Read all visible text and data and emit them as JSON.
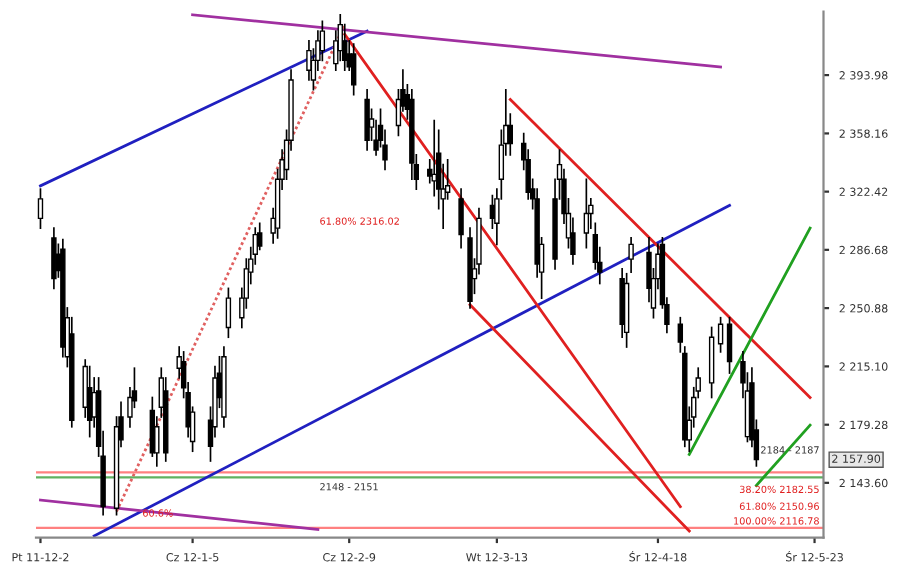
{
  "chart_data": {
    "type": "candlestick",
    "x": [
      "2011-12-02",
      "2011-12-05",
      "2011-12-06",
      "2011-12-07",
      "2011-12-08",
      "2011-12-09",
      "2011-12-12",
      "2011-12-13",
      "2011-12-14",
      "2011-12-15",
      "2011-12-16",
      "2011-12-19",
      "2011-12-20",
      "2011-12-22",
      "2011-12-23",
      "2011-12-27",
      "2011-12-28",
      "2011-12-29",
      "2011-12-30",
      "2012-01-02",
      "2012-01-03",
      "2012-01-04",
      "2012-01-05",
      "2012-01-09",
      "2012-01-10",
      "2012-01-11",
      "2012-01-12",
      "2012-01-13",
      "2012-01-16",
      "2012-01-17",
      "2012-01-18",
      "2012-01-19",
      "2012-01-20",
      "2012-01-23",
      "2012-01-24",
      "2012-01-25",
      "2012-01-26",
      "2012-01-27",
      "2012-01-31",
      "2012-02-01",
      "2012-02-02",
      "2012-02-03",
      "2012-02-06",
      "2012-02-07",
      "2012-02-08",
      "2012-02-09",
      "2012-02-10",
      "2012-02-13",
      "2012-02-14",
      "2012-02-15",
      "2012-02-16",
      "2012-02-17",
      "2012-02-20",
      "2012-02-21",
      "2012-02-22",
      "2012-02-23",
      "2012-02-24",
      "2012-02-27",
      "2012-02-28",
      "2012-02-29",
      "2012-03-01",
      "2012-03-02",
      "2012-03-05",
      "2012-03-07",
      "2012-03-08",
      "2012-03-09",
      "2012-03-12",
      "2012-03-13",
      "2012-03-14",
      "2012-03-15",
      "2012-03-16",
      "2012-03-19",
      "2012-03-20",
      "2012-03-21",
      "2012-03-22",
      "2012-03-23",
      "2012-03-26",
      "2012-03-27",
      "2012-03-28",
      "2012-03-29",
      "2012-03-30",
      "2012-04-02",
      "2012-04-03",
      "2012-04-04",
      "2012-04-05",
      "2012-04-10",
      "2012-04-11",
      "2012-04-12",
      "2012-04-16",
      "2012-04-17",
      "2012-04-18",
      "2012-04-19",
      "2012-04-20",
      "2012-04-23",
      "2012-04-24",
      "2012-04-25",
      "2012-04-26",
      "2012-04-27",
      "2012-04-30",
      "2012-05-02",
      "2012-05-04",
      "2012-05-07",
      "2012-05-08",
      "2012-05-09",
      "2012-05-10"
    ],
    "ohlc": [
      [
        2306,
        2324,
        2300,
        2318
      ],
      [
        2294,
        2300,
        2263,
        2269
      ],
      [
        2284,
        2290,
        2270,
        2274
      ],
      [
        2287,
        2293,
        2221,
        2227
      ],
      [
        2221,
        2251,
        2215,
        2245
      ],
      [
        2235,
        2245,
        2178,
        2182
      ],
      [
        2190,
        2219,
        2184,
        2215
      ],
      [
        2202,
        2215,
        2172,
        2182
      ],
      [
        2184,
        2208,
        2178,
        2199
      ],
      [
        2200,
        2208,
        2160,
        2166
      ],
      [
        2160,
        2175,
        2124,
        2129
      ],
      [
        2128,
        2184,
        2124,
        2178
      ],
      [
        2184,
        2193,
        2166,
        2170
      ],
      [
        2184,
        2202,
        2178,
        2196
      ],
      [
        2200,
        2214,
        2190,
        2194
      ],
      [
        2188,
        2196,
        2160,
        2162
      ],
      [
        2162,
        2184,
        2154,
        2178
      ],
      [
        2190,
        2214,
        2184,
        2208
      ],
      [
        2200,
        2208,
        2157,
        2162
      ],
      [
        2214,
        2227,
        2208,
        2221
      ],
      [
        2218,
        2224,
        2196,
        2202
      ],
      [
        2199,
        2205,
        2172,
        2178
      ],
      [
        2169,
        2190,
        2163,
        2187
      ],
      [
        2182,
        2190,
        2157,
        2166
      ],
      [
        2178,
        2215,
        2172,
        2208
      ],
      [
        2211,
        2221,
        2190,
        2196
      ],
      [
        2184,
        2227,
        2178,
        2221
      ],
      [
        2239,
        2263,
        2233,
        2257
      ],
      [
        2245,
        2263,
        2239,
        2257
      ],
      [
        2257,
        2281,
        2251,
        2275
      ],
      [
        2273,
        2288,
        2266,
        2281
      ],
      [
        2284,
        2300,
        2278,
        2296
      ],
      [
        2297,
        2303,
        2287,
        2289
      ],
      [
        2297,
        2312,
        2291,
        2306
      ],
      [
        2300,
        2336,
        2294,
        2330
      ],
      [
        2330,
        2348,
        2324,
        2342
      ],
      [
        2336,
        2360,
        2330,
        2354
      ],
      [
        2354,
        2397,
        2348,
        2391
      ],
      [
        2397,
        2415,
        2391,
        2409
      ],
      [
        2391,
        2410,
        2385,
        2403
      ],
      [
        2403,
        2421,
        2397,
        2415
      ],
      [
        2409,
        2427,
        2403,
        2421
      ],
      [
        2401,
        2421,
        2397,
        2415
      ],
      [
        2409,
        2431,
        2403,
        2425
      ],
      [
        2415,
        2425,
        2397,
        2403
      ],
      [
        2407,
        2415,
        2397,
        2399
      ],
      [
        2407,
        2413,
        2382,
        2388
      ],
      [
        2379,
        2385,
        2348,
        2354
      ],
      [
        2362,
        2373,
        2354,
        2367
      ],
      [
        2354,
        2366,
        2345,
        2348
      ],
      [
        2363,
        2373,
        2350,
        2354
      ],
      [
        2351,
        2360,
        2336,
        2342
      ],
      [
        2363,
        2385,
        2357,
        2379
      ],
      [
        2385,
        2397,
        2372,
        2375
      ],
      [
        2382,
        2388,
        2367,
        2373
      ],
      [
        2379,
        2385,
        2330,
        2340
      ],
      [
        2339,
        2345,
        2324,
        2330
      ],
      [
        2336,
        2342,
        2328,
        2332
      ],
      [
        2329,
        2366,
        2320,
        2333
      ],
      [
        2346,
        2360,
        2312,
        2324
      ],
      [
        2318,
        2339,
        2300,
        2324
      ],
      [
        2322,
        2342,
        2318,
        2326
      ],
      [
        2318,
        2324,
        2288,
        2296
      ],
      [
        2294,
        2300,
        2251,
        2255
      ],
      [
        2269,
        2281,
        2260,
        2275
      ],
      [
        2278,
        2312,
        2272,
        2306
      ],
      [
        2314,
        2320,
        2300,
        2306
      ],
      [
        2303,
        2324,
        2290,
        2318
      ],
      [
        2330,
        2360,
        2318,
        2351
      ],
      [
        2352,
        2385,
        2345,
        2363
      ],
      [
        2363,
        2370,
        2345,
        2352
      ],
      [
        2352,
        2358,
        2336,
        2342
      ],
      [
        2342,
        2348,
        2318,
        2322
      ],
      [
        2324,
        2330,
        2312,
        2318
      ],
      [
        2318,
        2324,
        2270,
        2278
      ],
      [
        2273,
        2294,
        2257,
        2290
      ],
      [
        2318,
        2330,
        2275,
        2281
      ],
      [
        2330,
        2348,
        2318,
        2339
      ],
      [
        2330,
        2336,
        2303,
        2309
      ],
      [
        2294,
        2318,
        2288,
        2309
      ],
      [
        2297,
        2306,
        2278,
        2284
      ],
      [
        2297,
        2330,
        2288,
        2309
      ],
      [
        2309,
        2318,
        2300,
        2314
      ],
      [
        2296,
        2303,
        2275,
        2279
      ],
      [
        2279,
        2288,
        2266,
        2273
      ],
      [
        2269,
        2275,
        2233,
        2241
      ],
      [
        2236,
        2272,
        2227,
        2266
      ],
      [
        2281,
        2294,
        2273,
        2290
      ],
      [
        2285,
        2294,
        2255,
        2263
      ],
      [
        2251,
        2275,
        2245,
        2269
      ],
      [
        2269,
        2290,
        2263,
        2284
      ],
      [
        2290,
        2294,
        2251,
        2253
      ],
      [
        2253,
        2257,
        2236,
        2241
      ],
      [
        2241,
        2245,
        2224,
        2230
      ],
      [
        2223,
        2227,
        2166,
        2170
      ],
      [
        2170,
        2190,
        2163,
        2182
      ],
      [
        2184,
        2202,
        2178,
        2196
      ],
      [
        2200,
        2214,
        2196,
        2208
      ],
      [
        2205,
        2239,
        2196,
        2233
      ],
      [
        2229,
        2245,
        2224,
        2241
      ],
      [
        2241,
        2245,
        2211,
        2218
      ],
      [
        2218,
        2224,
        2196,
        2205
      ],
      [
        2172,
        2211,
        2169,
        2200
      ],
      [
        2205,
        2214,
        2166,
        2170
      ],
      [
        2176,
        2182,
        2154,
        2157.9
      ]
    ],
    "series": [
      {
        "type": "line",
        "color": "#2020c0",
        "x": [
          "2011-12-02",
          "2012-02-13"
        ],
        "values": [
          2326,
          2421
        ]
      },
      {
        "type": "line",
        "color": "#2020c0",
        "x": [
          "2011-12-14",
          "2012-05-04"
        ],
        "values": [
          2111,
          2314
        ]
      },
      {
        "type": "line",
        "color": "#a030a0",
        "x": [
          "2012-01-05",
          "2012-05-02"
        ],
        "values": [
          2431,
          2399
        ]
      },
      {
        "type": "line",
        "color": "#a030a0",
        "x": [
          "2011-12-02",
          "2012-02-02"
        ],
        "values": [
          2133,
          2115
        ]
      },
      {
        "type": "line",
        "color": "#e02020",
        "x": [
          "2012-02-08",
          "2012-04-23"
        ],
        "values": [
          2419,
          2129
        ]
      },
      {
        "type": "line",
        "color": "#e02020",
        "x": [
          "2012-03-16",
          "2012-05-22"
        ],
        "values": [
          2379,
          2196
        ]
      },
      {
        "type": "line",
        "color": "#e02020",
        "x": [
          "2012-03-07",
          "2012-04-25"
        ],
        "values": [
          2253,
          2114
        ]
      },
      {
        "type": "line",
        "color": "#20a020",
        "x": [
          "2012-04-25",
          "2012-05-22"
        ],
        "values": [
          2161,
          2300
        ]
      },
      {
        "type": "line",
        "color": "#20a020",
        "x": [
          "2012-05-10",
          "2012-05-22"
        ],
        "values": [
          2142,
          2179
        ]
      },
      {
        "type": "line",
        "color": "#e06060",
        "line_style": "dotted",
        "x": [
          "2011-12-19",
          "2012-02-08"
        ],
        "values": [
          2126,
          2425
        ]
      }
    ],
    "ref_lines": [
      {
        "axis": "y",
        "value": 2150,
        "color": "#ff8080"
      },
      {
        "axis": "y",
        "value": 2147,
        "color": "#60b060"
      },
      {
        "axis": "y",
        "value": 2116,
        "color": "#ff8080"
      }
    ],
    "annotations": [
      "60.6%",
      "61.80% 2316.02",
      "2148 - 2151",
      "2184 - 2187",
      "38.20% 2182.55",
      "61.80% 2150.96",
      "100.00% 2116.78",
      "2 157.90"
    ],
    "xlim": [
      "2011-12-01",
      "2012-05-25"
    ],
    "xticks": [
      {
        "value": "2011-12-02",
        "label": "Pt 11-12-2"
      },
      {
        "value": "2012-01-05",
        "label": "Cz 12-1-5"
      },
      {
        "value": "2012-02-09",
        "label": "Cz 12-2-9"
      },
      {
        "value": "2012-03-13",
        "label": "Wt 12-3-13"
      },
      {
        "value": "2012-04-18",
        "label": "Śr 12-4-18"
      },
      {
        "value": "2012-05-23",
        "label": "Śr 12-5-23"
      }
    ],
    "ylim": [
      2110,
      2433
    ],
    "yticks": [
      {
        "value": 2393.98,
        "label": "2 393.98"
      },
      {
        "value": 2358.16,
        "label": "2 358.16"
      },
      {
        "value": 2322.42,
        "label": "2 322.42"
      },
      {
        "value": 2286.68,
        "label": "2 286.68"
      },
      {
        "value": 2250.88,
        "label": "2 250.88"
      },
      {
        "value": 2215.1,
        "label": "2 215.10"
      },
      {
        "value": 2179.28,
        "label": "2 179.28"
      },
      {
        "value": 2143.6,
        "label": "2 143.60"
      }
    ]
  }
}
